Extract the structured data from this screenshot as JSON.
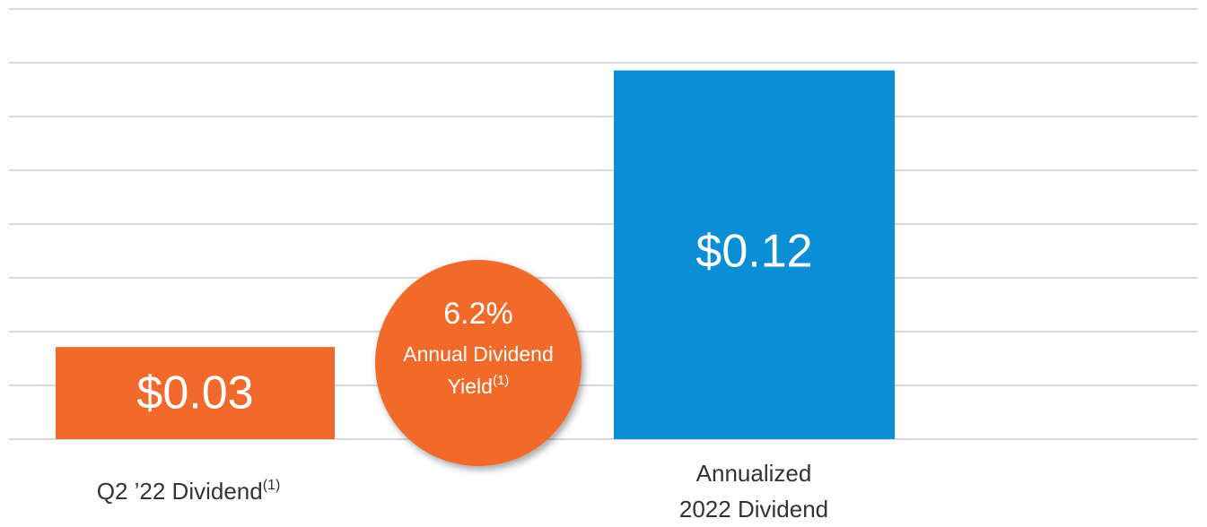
{
  "chart_data": {
    "type": "bar",
    "categories": [
      [
        "Q2 ’22 Dividend"
      ],
      [
        "Annualized",
        "2022 Dividend"
      ]
    ],
    "category_notes": [
      "(1)",
      null
    ],
    "values": [
      0.03,
      0.12
    ],
    "value_labels": [
      "$0.03",
      "$0.12"
    ],
    "colors": [
      "#f26a2b",
      "#0a8fd6"
    ],
    "ylim": [
      0,
      0.14
    ],
    "yticks": [
      0,
      0.0175,
      0.035,
      0.0525,
      0.07,
      0.0875,
      0.105,
      0.1225,
      0.14
    ],
    "grid": true,
    "annotation": {
      "value": 6.2,
      "label": "6.2%",
      "text": [
        "Annual Dividend",
        "Yield"
      ],
      "note": "(1)",
      "color": "#f26a2b"
    }
  }
}
